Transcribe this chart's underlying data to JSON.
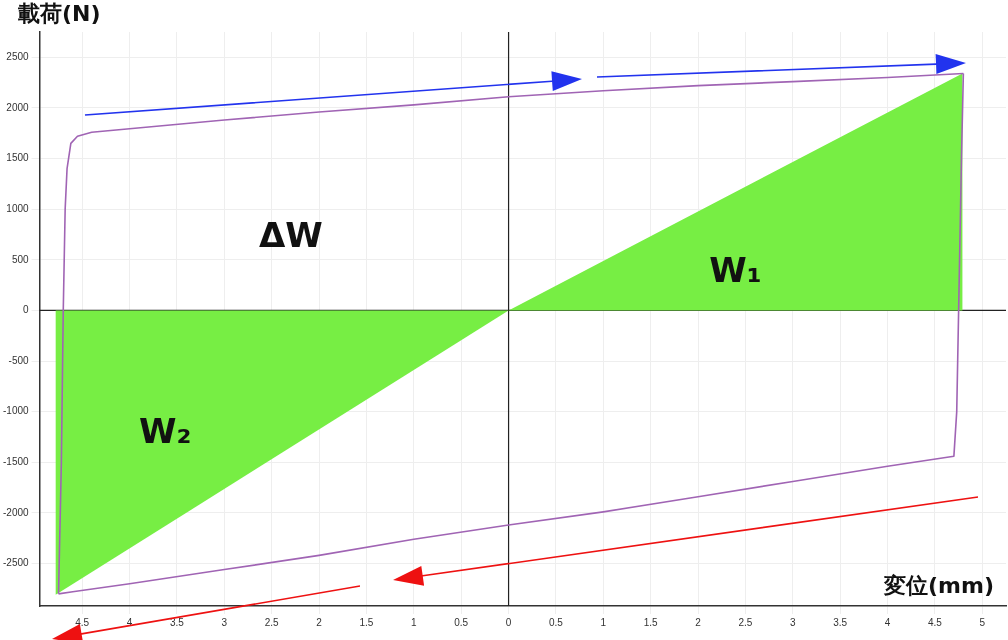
{
  "chart_data": {
    "type": "line",
    "xlabel": "変位(mm)",
    "ylabel": "載荷(N)",
    "xlim": [
      -4.95,
      5.25
    ],
    "ylim": [
      -2920,
      2750
    ],
    "xticks": [
      {
        "value": -4.5,
        "label": "4.5"
      },
      {
        "value": -4,
        "label": "4"
      },
      {
        "value": -3.5,
        "label": "3.5"
      },
      {
        "value": -3,
        "label": "3"
      },
      {
        "value": -2.5,
        "label": "2.5"
      },
      {
        "value": -2,
        "label": "2"
      },
      {
        "value": -1.5,
        "label": "1.5"
      },
      {
        "value": -1,
        "label": "1"
      },
      {
        "value": -0.5,
        "label": "0.5"
      },
      0,
      0.5,
      1,
      1.5,
      2,
      2.5,
      3,
      3.5,
      4,
      4.5,
      5
    ],
    "yticks": [
      -2500,
      -2000,
      -1500,
      -1000,
      -500,
      0,
      500,
      1000,
      1500,
      2000,
      2500
    ],
    "grid": true,
    "legend": false,
    "marker": "none",
    "line_style": "solid",
    "series": [
      {
        "type": "area",
        "color": "#77ee44",
        "x": [
          0,
          4.79,
          4.79,
          0
        ],
        "values": [
          0,
          2340,
          0,
          0
        ]
      },
      {
        "type": "area",
        "color": "#77ee44",
        "x": [
          0,
          -4.78,
          -4.78,
          0
        ],
        "values": [
          0,
          -2810,
          0,
          0
        ]
      },
      {
        "color": "#a064b4",
        "x": [
          -4.75,
          -4.72,
          -4.7,
          -4.68,
          -4.66,
          -4.62,
          -4.55,
          -4.4,
          -3,
          -2,
          -1,
          0,
          1,
          2,
          3,
          4,
          4.8
        ],
        "values": [
          -2800,
          -1500,
          0,
          1000,
          1400,
          1650,
          1720,
          1760,
          1880,
          1960,
          2030,
          2110,
          2170,
          2220,
          2260,
          2300,
          2340
        ]
      },
      {
        "color": "#a064b4",
        "x": [
          -4.75,
          -4.6,
          -4,
          -3,
          -2,
          -1,
          0,
          1,
          2,
          3,
          4,
          4.7,
          4.73,
          4.75,
          4.78,
          4.8
        ],
        "values": [
          -2800,
          -2780,
          -2700,
          -2560,
          -2420,
          -2260,
          -2120,
          -1990,
          -1840,
          -1690,
          -1540,
          -1440,
          -1000,
          0,
          1500,
          2340
        ]
      }
    ],
    "annotations": [
      "ΔW",
      "W₁",
      "W₂"
    ]
  }
}
